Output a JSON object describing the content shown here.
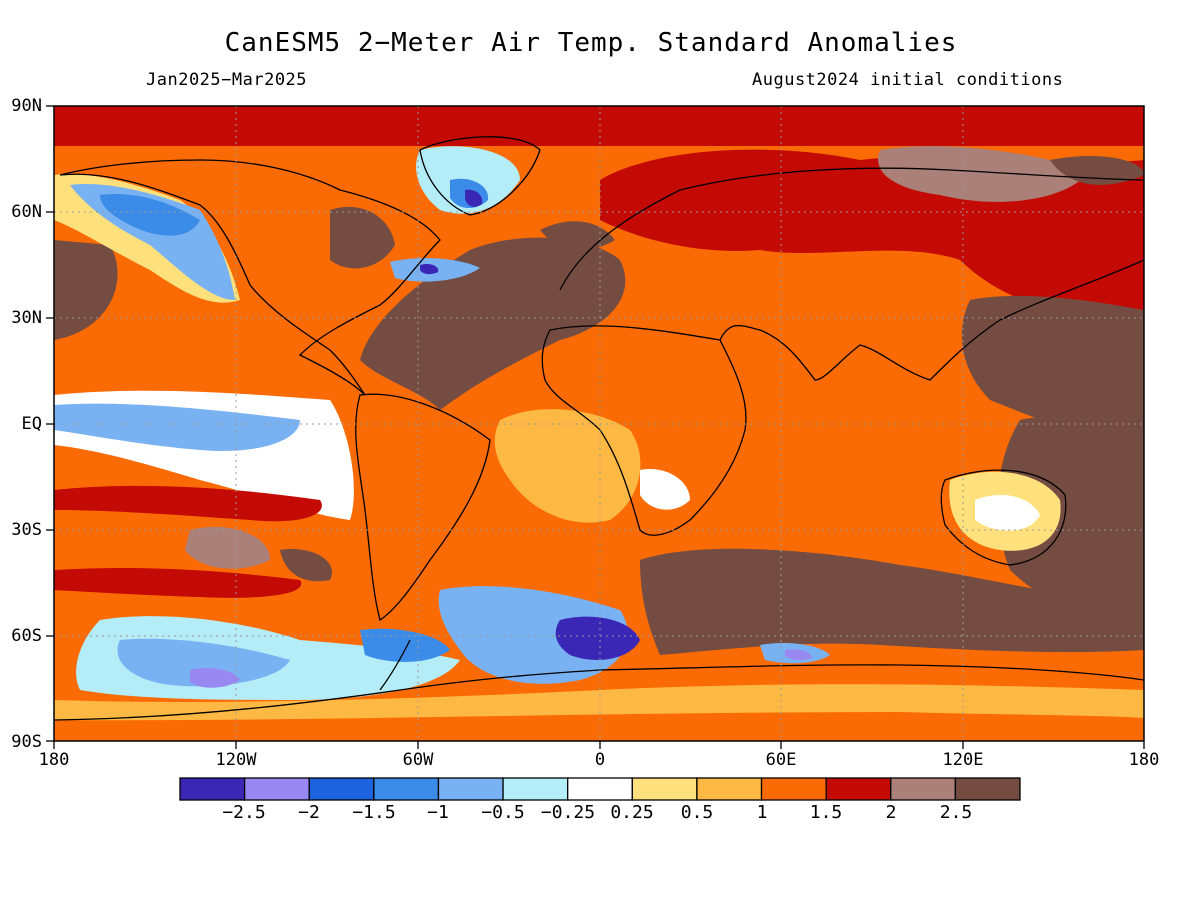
{
  "title": "CanESM5 2−Meter Air Temp. Standard Anomalies",
  "period": "Jan2025−Mar2025",
  "initial_conditions": "August2024 initial conditions",
  "lat_labels": [
    "90N",
    "60N",
    "30N",
    "EQ",
    "30S",
    "60S",
    "90S"
  ],
  "lon_labels": [
    "180",
    "120W",
    "60W",
    "0",
    "60E",
    "120E",
    "180"
  ],
  "colorbar": {
    "colors": [
      "#3a27b5",
      "#9a88f2",
      "#1d63e0",
      "#3a8ce8",
      "#79b2f2",
      "#b4ecf7",
      "#ffffff",
      "#fee07d",
      "#fdb943",
      "#fb6b05",
      "#c40a05",
      "#ab8079",
      "#744c42"
    ],
    "labels": [
      "−2.5",
      "−2",
      "−1.5",
      "−1",
      "−0.5",
      "−0.25",
      "0.25",
      "0.5",
      "1",
      "1.5",
      "2",
      "2.5"
    ]
  }
}
